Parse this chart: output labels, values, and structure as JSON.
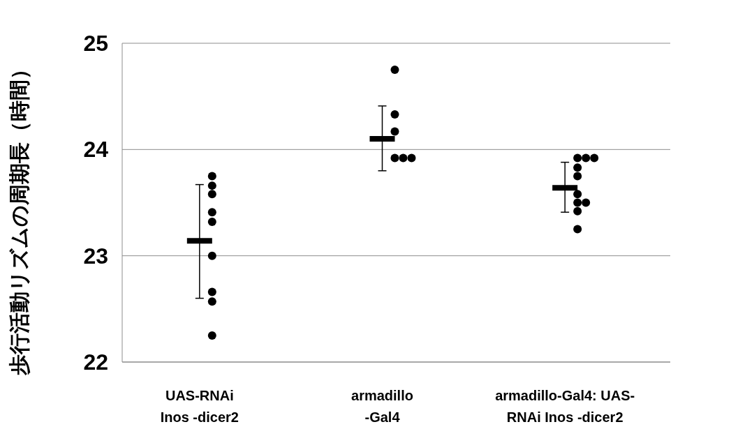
{
  "chart_data": {
    "type": "scatter",
    "ylabel": "歩行活動リズムの周期長（時間）",
    "categories": [
      "UAS-RNAi\nInos -dicer2",
      "armadillo\n-Gal4",
      "armadillo-Gal4: UAS-\nRNAi Inos -dicer2"
    ],
    "ylim": [
      22,
      25
    ],
    "yticks": [
      22,
      23,
      24,
      25
    ],
    "grid": "y",
    "series": [
      {
        "marker": "circle",
        "color": "#000000",
        "x": [
          "UAS-RNAi\nInos -dicer2",
          "UAS-RNAi\nInos -dicer2",
          "UAS-RNAi\nInos -dicer2",
          "UAS-RNAi\nInos -dicer2",
          "UAS-RNAi\nInos -dicer2",
          "UAS-RNAi\nInos -dicer2",
          "UAS-RNAi\nInos -dicer2",
          "UAS-RNAi\nInos -dicer2",
          "UAS-RNAi\nInos -dicer2",
          "armadillo\n-Gal4",
          "armadillo\n-Gal4",
          "armadillo\n-Gal4",
          "armadillo\n-Gal4",
          "armadillo\n-Gal4",
          "armadillo\n-Gal4",
          "armadillo-Gal4: UAS-\nRNAi Inos -dicer2",
          "armadillo-Gal4: UAS-\nRNAi Inos -dicer2",
          "armadillo-Gal4: UAS-\nRNAi Inos -dicer2",
          "armadillo-Gal4: UAS-\nRNAi Inos -dicer2",
          "armadillo-Gal4: UAS-\nRNAi Inos -dicer2",
          "armadillo-Gal4: UAS-\nRNAi Inos -dicer2",
          "armadillo-Gal4: UAS-\nRNAi Inos -dicer2",
          "armadillo-Gal4: UAS-\nRNAi Inos -dicer2",
          "armadillo-Gal4: UAS-\nRNAi Inos -dicer2",
          "armadillo-Gal4: UAS-\nRNAi Inos -dicer2"
        ],
        "values": [
          23.75,
          23.66,
          23.58,
          23.41,
          23.32,
          23.0,
          22.66,
          22.57,
          22.25,
          24.75,
          24.33,
          24.17,
          23.92,
          23.92,
          23.92,
          23.92,
          23.92,
          23.92,
          23.83,
          23.75,
          23.58,
          23.5,
          23.5,
          23.42,
          23.25
        ]
      },
      {
        "type": "box",
        "color": "#000000",
        "boxes": [
          {
            "low": 22.6,
            "q1": 23.14,
            "median": 23.14,
            "q3": 23.14,
            "high": 23.67
          },
          {
            "low": 23.8,
            "q1": 24.1,
            "median": 24.1,
            "q3": 24.1,
            "high": 24.41
          },
          {
            "low": 23.41,
            "q1": 23.64,
            "median": 23.64,
            "q3": 23.64,
            "high": 23.88
          }
        ]
      }
    ]
  }
}
